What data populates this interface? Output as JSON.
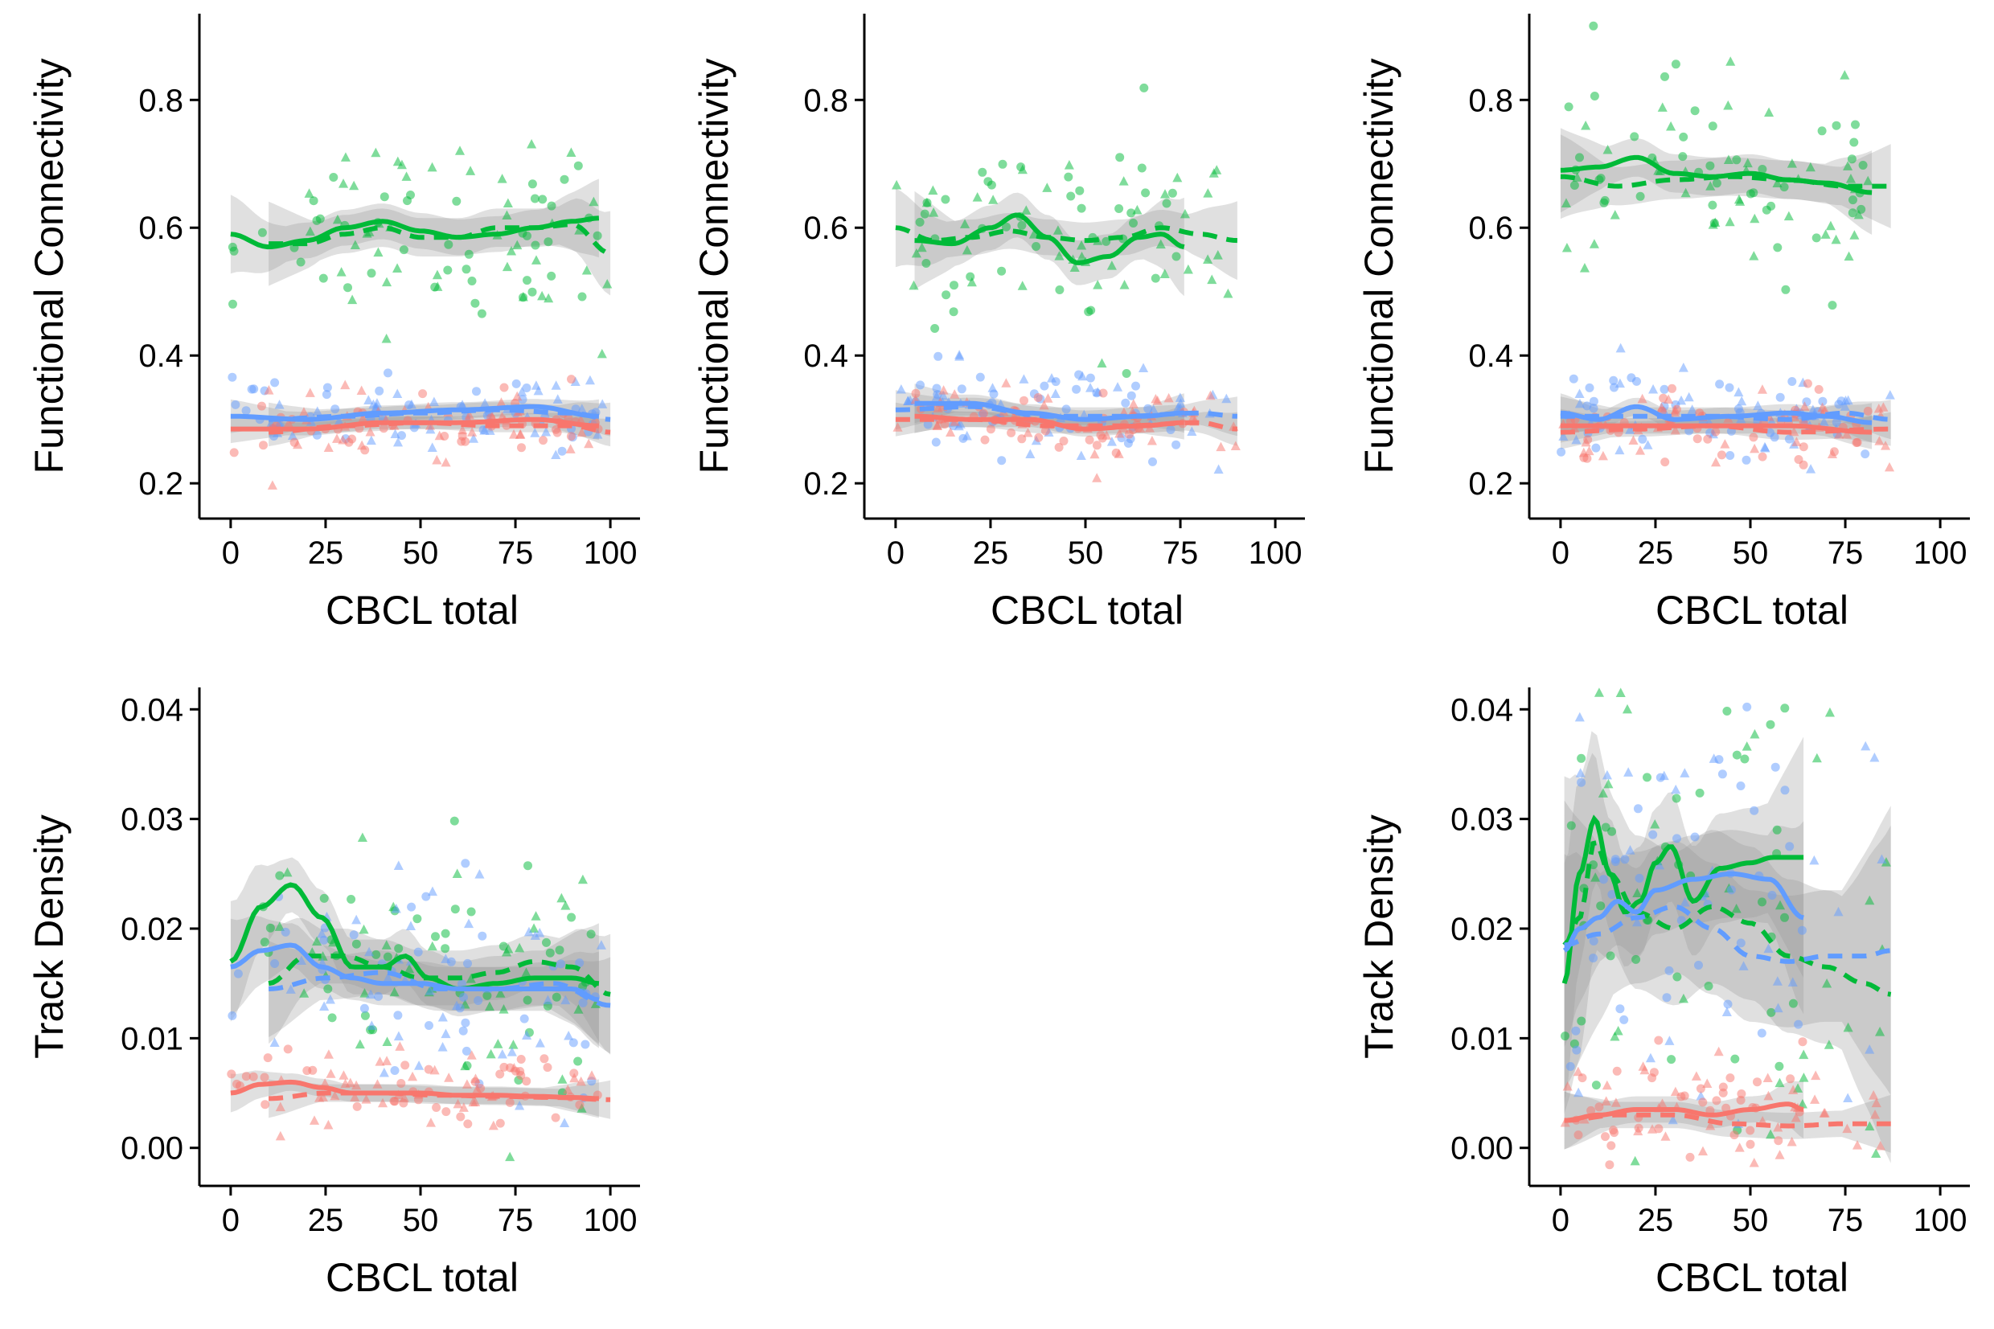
{
  "colors": {
    "red": "#F8766D",
    "green": "#00BA38",
    "blue": "#619CFF",
    "band": "#999999"
  },
  "chart_data": [
    {
      "type": "scatter",
      "panel": "top-left",
      "xlabel": "CBCL total",
      "ylabel": "Functional Connectivity",
      "xlim": [
        -4,
        104
      ],
      "ylim": [
        0.17,
        0.935
      ],
      "xticks": [
        "0",
        "25",
        "50",
        "75",
        "100"
      ],
      "yticks": [
        "0.2",
        "0.4",
        "0.6",
        "0.8"
      ],
      "series": [
        {
          "color": "green",
          "style": "solid",
          "se": 0.028,
          "x": [
            0,
            10,
            20,
            30,
            40,
            50,
            60,
            70,
            80,
            90,
            97
          ],
          "y": [
            0.59,
            0.57,
            0.58,
            0.6,
            0.61,
            0.595,
            0.585,
            0.59,
            0.6,
            0.61,
            0.615
          ]
        },
        {
          "color": "green",
          "style": "dashed",
          "se": 0.03,
          "x": [
            10,
            20,
            30,
            40,
            50,
            60,
            70,
            80,
            90,
            100
          ],
          "y": [
            0.575,
            0.575,
            0.59,
            0.6,
            0.585,
            0.585,
            0.6,
            0.6,
            0.605,
            0.56
          ]
        },
        {
          "color": "blue",
          "style": "solid",
          "se": 0.012,
          "x": [
            0,
            20,
            40,
            60,
            80,
            97
          ],
          "y": [
            0.305,
            0.3,
            0.31,
            0.315,
            0.32,
            0.305
          ]
        },
        {
          "color": "blue",
          "style": "dashed",
          "se": 0.012,
          "x": [
            10,
            30,
            50,
            70,
            90,
            100
          ],
          "y": [
            0.3,
            0.305,
            0.31,
            0.315,
            0.31,
            0.3
          ]
        },
        {
          "color": "red",
          "style": "solid",
          "se": 0.01,
          "x": [
            0,
            20,
            40,
            60,
            80,
            97
          ],
          "y": [
            0.285,
            0.285,
            0.295,
            0.295,
            0.3,
            0.29
          ]
        },
        {
          "color": "red",
          "style": "dashed",
          "se": 0.01,
          "x": [
            10,
            30,
            50,
            70,
            90,
            100
          ],
          "y": [
            0.28,
            0.29,
            0.295,
            0.29,
            0.29,
            0.28
          ]
        }
      ]
    },
    {
      "type": "scatter",
      "panel": "top-middle",
      "xlabel": "CBCL total",
      "ylabel": "Functional Connectivity",
      "xlim": [
        -4,
        104
      ],
      "ylim": [
        0.17,
        0.935
      ],
      "xticks": [
        "0",
        "25",
        "50",
        "75",
        "100"
      ],
      "yticks": [
        "0.2",
        "0.4",
        "0.6",
        "0.8"
      ],
      "series": [
        {
          "color": "green",
          "style": "solid",
          "se": 0.035,
          "x": [
            5,
            15,
            25,
            32,
            40,
            48,
            56,
            64,
            70,
            76
          ],
          "y": [
            0.58,
            0.575,
            0.6,
            0.62,
            0.585,
            0.545,
            0.555,
            0.585,
            0.59,
            0.57
          ]
        },
        {
          "color": "green",
          "style": "dashed",
          "se": 0.028,
          "x": [
            0,
            10,
            20,
            30,
            40,
            50,
            60,
            70,
            80,
            90
          ],
          "y": [
            0.6,
            0.58,
            0.585,
            0.595,
            0.585,
            0.58,
            0.585,
            0.6,
            0.59,
            0.58
          ]
        },
        {
          "color": "blue",
          "style": "solid",
          "se": 0.014,
          "x": [
            5,
            20,
            35,
            50,
            65,
            76
          ],
          "y": [
            0.325,
            0.325,
            0.31,
            0.3,
            0.305,
            0.31
          ]
        },
        {
          "color": "blue",
          "style": "dashed",
          "se": 0.014,
          "x": [
            0,
            20,
            40,
            60,
            80,
            90
          ],
          "y": [
            0.315,
            0.32,
            0.305,
            0.305,
            0.31,
            0.305
          ]
        },
        {
          "color": "red",
          "style": "solid",
          "se": 0.012,
          "x": [
            5,
            20,
            35,
            50,
            65,
            76
          ],
          "y": [
            0.305,
            0.3,
            0.3,
            0.285,
            0.29,
            0.295
          ]
        },
        {
          "color": "red",
          "style": "dashed",
          "se": 0.012,
          "x": [
            0,
            20,
            40,
            60,
            80,
            90
          ],
          "y": [
            0.3,
            0.3,
            0.29,
            0.29,
            0.295,
            0.285
          ]
        }
      ]
    },
    {
      "type": "scatter",
      "panel": "top-right",
      "xlabel": "CBCL total",
      "ylabel": "Functional Connectivity",
      "xlim": [
        -4,
        104
      ],
      "ylim": [
        0.17,
        0.935
      ],
      "xticks": [
        "0",
        "25",
        "50",
        "75",
        "100"
      ],
      "yticks": [
        "0.2",
        "0.4",
        "0.6",
        "0.8"
      ],
      "series": [
        {
          "color": "green",
          "style": "solid",
          "se": 0.03,
          "x": [
            0,
            10,
            20,
            30,
            40,
            50,
            60,
            70,
            82
          ],
          "y": [
            0.69,
            0.695,
            0.71,
            0.685,
            0.68,
            0.685,
            0.675,
            0.67,
            0.655
          ]
        },
        {
          "color": "green",
          "style": "dashed",
          "se": 0.03,
          "x": [
            0,
            15,
            30,
            45,
            60,
            75,
            87
          ],
          "y": [
            0.68,
            0.665,
            0.675,
            0.68,
            0.675,
            0.665,
            0.665
          ]
        },
        {
          "color": "blue",
          "style": "solid",
          "se": 0.014,
          "x": [
            0,
            10,
            20,
            30,
            45,
            60,
            70,
            82
          ],
          "y": [
            0.31,
            0.3,
            0.32,
            0.3,
            0.305,
            0.31,
            0.305,
            0.295
          ]
        },
        {
          "color": "blue",
          "style": "dashed",
          "se": 0.014,
          "x": [
            0,
            20,
            40,
            60,
            75,
            87
          ],
          "y": [
            0.305,
            0.305,
            0.305,
            0.3,
            0.31,
            0.3
          ]
        },
        {
          "color": "red",
          "style": "solid",
          "se": 0.012,
          "x": [
            0,
            20,
            40,
            60,
            82
          ],
          "y": [
            0.29,
            0.29,
            0.29,
            0.29,
            0.28
          ]
        },
        {
          "color": "red",
          "style": "dashed",
          "se": 0.012,
          "x": [
            0,
            20,
            40,
            60,
            87
          ],
          "y": [
            0.28,
            0.285,
            0.29,
            0.28,
            0.285
          ]
        }
      ]
    },
    {
      "type": "scatter",
      "panel": "bottom-left",
      "xlabel": "CBCL total",
      "ylabel": "Track Density",
      "xlim": [
        -4,
        104
      ],
      "ylim": [
        -0.002,
        0.042
      ],
      "xticks": [
        "0",
        "25",
        "50",
        "75",
        "100"
      ],
      "yticks": [
        "0.00",
        "0.01",
        "0.02",
        "0.03",
        "0.04"
      ],
      "series": [
        {
          "color": "green",
          "style": "solid",
          "se": 0.0025,
          "x": [
            0,
            8,
            16,
            24,
            32,
            40,
            46,
            52,
            60,
            70,
            80,
            90,
            97
          ],
          "y": [
            0.017,
            0.022,
            0.024,
            0.021,
            0.0165,
            0.0165,
            0.0175,
            0.0155,
            0.0145,
            0.015,
            0.0155,
            0.0155,
            0.015
          ]
        },
        {
          "color": "green",
          "style": "dashed",
          "se": 0.0025,
          "x": [
            10,
            20,
            30,
            40,
            50,
            60,
            70,
            80,
            90,
            100
          ],
          "y": [
            0.015,
            0.0175,
            0.0175,
            0.0165,
            0.0155,
            0.0155,
            0.016,
            0.017,
            0.0165,
            0.014
          ]
        },
        {
          "color": "blue",
          "style": "solid",
          "se": 0.002,
          "x": [
            0,
            8,
            16,
            24,
            32,
            40,
            50,
            60,
            70,
            80,
            90,
            97
          ],
          "y": [
            0.0165,
            0.018,
            0.0185,
            0.0165,
            0.0155,
            0.015,
            0.015,
            0.0145,
            0.0145,
            0.0145,
            0.0145,
            0.0135
          ]
        },
        {
          "color": "blue",
          "style": "dashed",
          "se": 0.002,
          "x": [
            10,
            25,
            40,
            55,
            70,
            85,
            100
          ],
          "y": [
            0.0145,
            0.0155,
            0.016,
            0.0145,
            0.0145,
            0.015,
            0.013
          ]
        },
        {
          "color": "red",
          "style": "solid",
          "se": 0.0008,
          "x": [
            0,
            8,
            16,
            24,
            32,
            40,
            50,
            60,
            70,
            80,
            90,
            97
          ],
          "y": [
            0.005,
            0.0058,
            0.006,
            0.0055,
            0.005,
            0.005,
            0.005,
            0.0048,
            0.0048,
            0.0047,
            0.0046,
            0.0045
          ]
        },
        {
          "color": "red",
          "style": "dashed",
          "se": 0.0008,
          "x": [
            10,
            25,
            40,
            55,
            70,
            85,
            100
          ],
          "y": [
            0.0045,
            0.005,
            0.005,
            0.0048,
            0.0047,
            0.0046,
            0.0044
          ]
        }
      ]
    },
    {
      "type": "scatter",
      "panel": "bottom-right",
      "xlabel": "CBCL total",
      "ylabel": "Track Density",
      "xlim": [
        -4,
        104
      ],
      "ylim": [
        -0.002,
        0.042
      ],
      "xticks": [
        "0",
        "25",
        "50",
        "75",
        "100"
      ],
      "yticks": [
        "0.00",
        "0.01",
        "0.02",
        "0.03",
        "0.04"
      ],
      "series": [
        {
          "color": "green",
          "style": "solid",
          "se": 0.005,
          "x": [
            1,
            5,
            9,
            13,
            17,
            21,
            25,
            29,
            35,
            42,
            50,
            56,
            64
          ],
          "y": [
            0.015,
            0.025,
            0.03,
            0.025,
            0.0215,
            0.0225,
            0.026,
            0.0275,
            0.0225,
            0.0255,
            0.026,
            0.0265,
            0.0265
          ]
        },
        {
          "color": "green",
          "style": "dashed",
          "se": 0.007,
          "x": [
            1,
            5,
            9,
            13,
            20,
            30,
            40,
            50,
            60,
            70,
            80,
            87
          ],
          "y": [
            0.0185,
            0.021,
            0.028,
            0.025,
            0.0215,
            0.02,
            0.022,
            0.0205,
            0.0175,
            0.0165,
            0.015,
            0.014
          ]
        },
        {
          "color": "blue",
          "style": "solid",
          "se": 0.004,
          "x": [
            1,
            5,
            10,
            15,
            20,
            25,
            35,
            45,
            55,
            64
          ],
          "y": [
            0.018,
            0.02,
            0.021,
            0.0225,
            0.0215,
            0.0235,
            0.0245,
            0.025,
            0.0245,
            0.021
          ]
        },
        {
          "color": "blue",
          "style": "dashed",
          "se": 0.006,
          "x": [
            1,
            10,
            20,
            30,
            40,
            50,
            60,
            70,
            80,
            87
          ],
          "y": [
            0.0185,
            0.0195,
            0.021,
            0.022,
            0.02,
            0.0175,
            0.017,
            0.0175,
            0.0175,
            0.018
          ]
        },
        {
          "color": "red",
          "style": "solid",
          "se": 0.0012,
          "x": [
            1,
            10,
            20,
            30,
            40,
            50,
            60,
            64
          ],
          "y": [
            0.0025,
            0.003,
            0.0035,
            0.0035,
            0.003,
            0.0035,
            0.004,
            0.0035
          ]
        },
        {
          "color": "red",
          "style": "dashed",
          "se": 0.0012,
          "x": [
            1,
            15,
            30,
            45,
            60,
            75,
            87
          ],
          "y": [
            0.0025,
            0.003,
            0.003,
            0.0022,
            0.002,
            0.0022,
            0.0022
          ]
        }
      ]
    }
  ]
}
